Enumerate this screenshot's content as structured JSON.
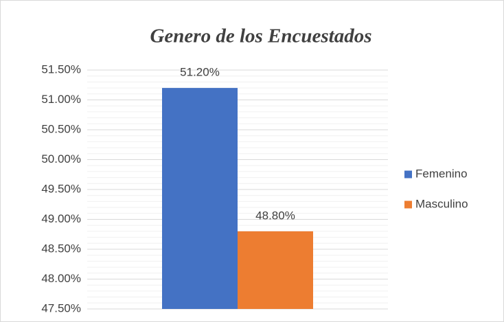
{
  "chart_data": {
    "type": "bar",
    "title": "Genero de los Encuestados",
    "categories": [
      null
    ],
    "series": [
      {
        "name": "Femenino",
        "color": "#4472c4",
        "values": [
          51.2
        ],
        "value_labels": [
          "51.20%"
        ]
      },
      {
        "name": "Masculino",
        "color": "#ed7d31",
        "values": [
          48.8
        ],
        "value_labels": [
          "48.80%"
        ]
      }
    ],
    "ylim": [
      47.5,
      51.5
    ],
    "yticks": [
      {
        "value": 47.5,
        "label": "47.50%"
      },
      {
        "value": 48,
        "label": "48.00%"
      },
      {
        "value": 48.5,
        "label": "48.50%"
      },
      {
        "value": 49,
        "label": "49.00%"
      },
      {
        "value": 49.5,
        "label": "49.50%"
      },
      {
        "value": 50,
        "label": "50.00%"
      },
      {
        "value": 50.5,
        "label": "50.50%"
      },
      {
        "value": 51,
        "label": "51.00%"
      },
      {
        "value": 51.5,
        "label": "51.50%"
      }
    ],
    "minor_yticks": [
      47.6,
      47.7,
      47.8,
      47.9,
      48.1,
      48.2,
      48.3,
      48.4,
      48.6,
      48.7,
      48.8,
      48.9,
      49.1,
      49.2,
      49.3,
      49.4,
      49.6,
      49.7,
      49.8,
      49.9,
      50.1,
      50.2,
      50.3,
      50.4,
      50.6,
      50.7,
      50.8,
      50.9,
      51.1,
      51.2,
      51.3,
      51.4
    ],
    "grid": true,
    "legend": "right"
  }
}
